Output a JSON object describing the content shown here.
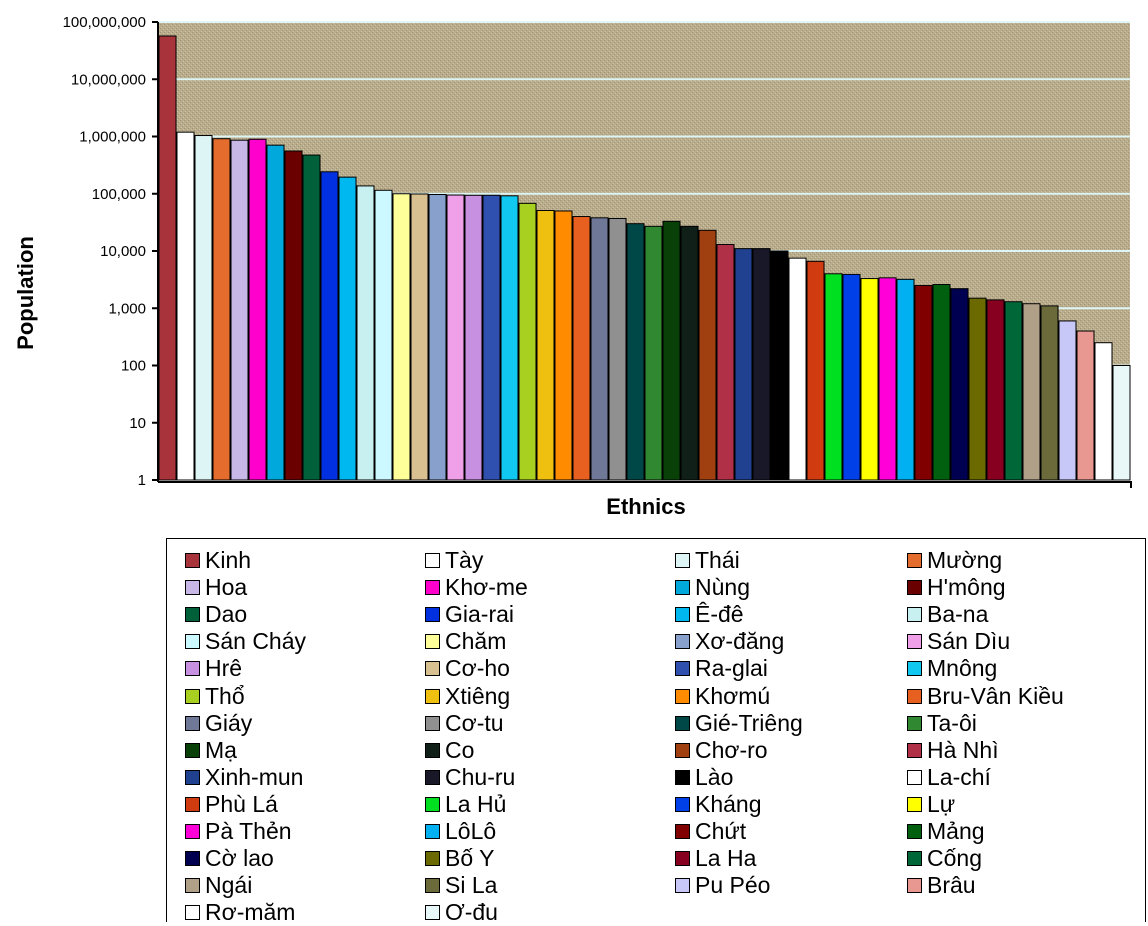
{
  "chart_data": {
    "type": "bar",
    "scale": "log",
    "xlabel": "Ethnics",
    "ylabel": "Population",
    "ylim": [
      1,
      100000000
    ],
    "y_ticks": [
      "1",
      "10",
      "100",
      "1,000",
      "10,000",
      "100,000",
      "1,000,000",
      "10,000,000",
      "100,000,000"
    ],
    "grid": "horizontal",
    "legend_position": "bottom",
    "categories": [
      "Kinh",
      "Tày",
      "Thái",
      "Mường",
      "Hoa",
      "Khơ-me",
      "Nùng",
      "H'mông",
      "Dao",
      "Gia-rai",
      "Ê-đê",
      "Ba-na",
      "Sán Chay",
      "Chăm",
      "Cơ-ho",
      "Xơ-đăng",
      "Sán Dìu",
      "Hrê",
      "Ra-glai",
      "Mnông",
      "Thổ",
      "Xtiêng",
      "Khơmú",
      "Bru-Vân Kiều",
      "Giáy",
      "Cơ-tu",
      "Gié-Triêng",
      "Ta-ôi",
      "Mạ",
      "Co",
      "Chơ-ro",
      "Hà Nhì",
      "Xinh-mun",
      "Chu-ru",
      "Lào",
      "La-chí",
      "Phù Lá",
      "La Hủ",
      "Kháng",
      "Lự",
      "Pà Thẻn",
      "LôLô",
      "Chứt",
      "Mảng",
      "Cờ lao",
      "Bố Y",
      "La Ha",
      "Cống",
      "Ngái",
      "Si La",
      "Pu Péo",
      "Brâu",
      "Rơ-măm",
      "Ơ-đu"
    ],
    "values": [
      57000000,
      1190000,
      1040000,
      915000,
      862000,
      895000,
      706000,
      558000,
      474000,
      242000,
      195000,
      137000,
      115000,
      100000,
      99000,
      97000,
      95000,
      94000,
      94000,
      92000,
      68000,
      51000,
      50000,
      40000,
      38000,
      37000,
      30000,
      27000,
      33000,
      27000,
      23000,
      13000,
      11000,
      11000,
      10000,
      7500,
      6600,
      4000,
      3900,
      3300,
      3400,
      3200,
      2500,
      2600,
      2200,
      1500,
      1400,
      1300,
      1200,
      1100,
      600,
      400,
      250,
      100
    ],
    "colors": [
      "#a8333a",
      "#ffffff",
      "#ddf5f5",
      "#e46c2d",
      "#c8b8e8",
      "#ff00cc",
      "#00a8dc",
      "#6b0000",
      "#00603a",
      "#0030e0",
      "#00b8f0",
      "#c8f0f0",
      "#ccf8ff",
      "#ffff9a",
      "#d8c090",
      "#88a0cc",
      "#f0a0e8",
      "#c890e0",
      "#3050b0",
      "#10c8f0",
      "#a8d020",
      "#f0c010",
      "#ff8c00",
      "#e86020",
      "#707898",
      "#909090",
      "#004848",
      "#308830",
      "#084008",
      "#102018",
      "#a04010",
      "#b03048",
      "#204090",
      "#181828",
      "#000000",
      "#ffffff",
      "#d03c10",
      "#00e020",
      "#0040e8",
      "#ffff00",
      "#ff00d8",
      "#00b0f0",
      "#800000",
      "#006010",
      "#000050",
      "#6a6a00",
      "#880020",
      "#006838",
      "#b0a088",
      "#6a6a3a",
      "#c8c8f8",
      "#e89890",
      "#ffffff",
      "#e8f8f8"
    ],
    "legend_entries": [
      "Kinh",
      "Tày",
      "Thái",
      "Mường",
      "Hoa",
      "Khơ-me",
      "Nùng",
      "H'mông",
      "Dao",
      "Gia-rai",
      "Ê-đê",
      "Ba-na",
      "Sán Cháy",
      "Chăm",
      "Xơ-đăng",
      "Sán Dìu",
      "Hrê",
      "Cơ-ho",
      "Ra-glai",
      "Mnông",
      "Thổ",
      "Xtiêng",
      "Khơmú",
      "Bru-Vân Kiều",
      "Giáy",
      "Cơ-tu",
      "Gié-Triêng",
      "Ta-ôi",
      "Mạ",
      "Co",
      "Chơ-ro",
      "Hà Nhì",
      "Xinh-mun",
      "Chu-ru",
      "Lào",
      "La-chí",
      "Phù Lá",
      "La Hủ",
      "Kháng",
      "Lự",
      "Pà Thẻn",
      "LôLô",
      "Chứt",
      "Mảng",
      "Cờ lao",
      "Bố Y",
      "La Ha",
      "Cống",
      "Ngái",
      "Si La",
      "Pu Péo",
      "Brâu",
      "Rơ-măm",
      "Ơ-đu"
    ],
    "legend_colors": [
      "#a8333a",
      "#ffffff",
      "#ddf5f5",
      "#e46c2d",
      "#c8b8e8",
      "#ff00cc",
      "#00a8dc",
      "#6b0000",
      "#00603a",
      "#0030e0",
      "#00b8f0",
      "#c8f0f0",
      "#ccf8ff",
      "#ffff9a",
      "#88a0cc",
      "#f0a0e8",
      "#c890e0",
      "#d8c090",
      "#3050b0",
      "#10c8f0",
      "#a8d020",
      "#f0c010",
      "#ff8c00",
      "#e86020",
      "#707898",
      "#909090",
      "#004848",
      "#308830",
      "#084008",
      "#102018",
      "#a04010",
      "#b03048",
      "#204090",
      "#181828",
      "#000000",
      "#ffffff",
      "#d03c10",
      "#00e020",
      "#0040e8",
      "#ffff00",
      "#ff00d8",
      "#00b0f0",
      "#800000",
      "#006010",
      "#000050",
      "#6a6a00",
      "#880020",
      "#006838",
      "#b0a088",
      "#6a6a3a",
      "#c8c8f8",
      "#e89890",
      "#ffffff",
      "#e8f8f8"
    ]
  },
  "plot_background": "#b8ac8c",
  "gridline_color": "#ddf5f5"
}
